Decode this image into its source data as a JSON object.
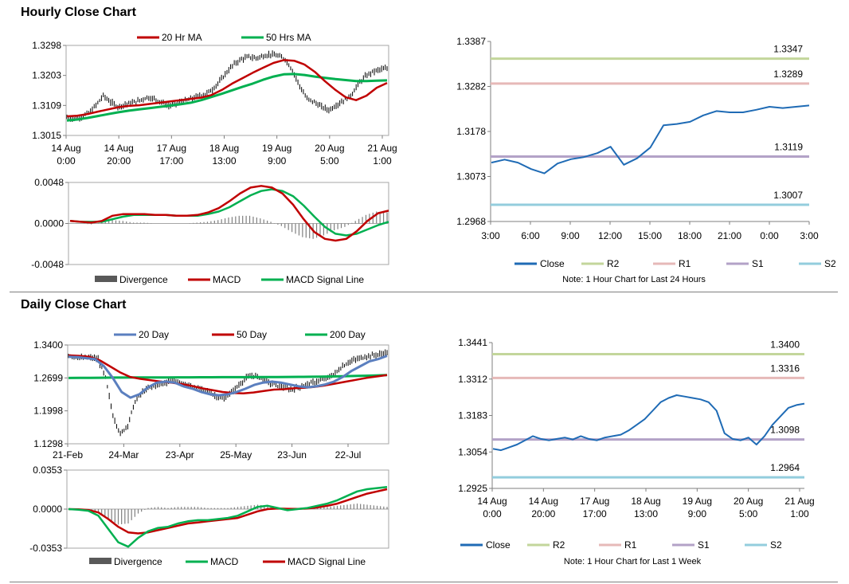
{
  "sections": {
    "hourly_title": "Hourly Close Chart",
    "daily_title": "Daily Close Chart"
  },
  "colors": {
    "red": "#c00000",
    "green": "#00b050",
    "blue": "#1f6bb5",
    "steel": "#5b7fbf",
    "r2": "#c3d69b",
    "r1": "#e6b9b8",
    "s1": "#b3a2c7",
    "s2": "#93cddd",
    "gray": "#7f7f7f",
    "black": "#000000"
  },
  "chart_data": [
    {
      "id": "hourly_price",
      "type": "line",
      "legend": [
        "20 Hr MA",
        "50 Hrs MA"
      ],
      "y_ticks": [
        "1.3298",
        "1.3203",
        "1.3109",
        "1.3015"
      ],
      "ylim": [
        1.3015,
        1.3298
      ],
      "x_ticks": [
        [
          "14 Aug",
          "0:00"
        ],
        [
          "14 Aug",
          "20:00"
        ],
        [
          "17 Aug",
          "17:00"
        ],
        [
          "18 Aug",
          "13:00"
        ],
        [
          "19 Aug",
          "9:00"
        ],
        [
          "20 Aug",
          "5:00"
        ],
        [
          "21 Aug",
          "1:00"
        ]
      ],
      "close_mid": [
        1.3072,
        1.3067,
        1.3075,
        1.3085,
        1.311,
        1.314,
        1.312,
        1.3105,
        1.3112,
        1.3118,
        1.3125,
        1.3135,
        1.313,
        1.312,
        1.3108,
        1.3115,
        1.3122,
        1.313,
        1.3138,
        1.3145,
        1.316,
        1.3185,
        1.3215,
        1.324,
        1.3255,
        1.3262,
        1.3258,
        1.3265,
        1.327,
        1.3265,
        1.3255,
        1.322,
        1.317,
        1.313,
        1.312,
        1.3105,
        1.3095,
        1.311,
        1.3125,
        1.314,
        1.3175,
        1.32,
        1.3215,
        1.3222,
        1.3225
      ],
      "series": [
        {
          "name": "20 Hr MA",
          "values": [
            1.3075,
            1.3077,
            1.3082,
            1.309,
            1.3097,
            1.3104,
            1.3108,
            1.311,
            1.3114,
            1.3118,
            1.3122,
            1.3126,
            1.313,
            1.3134,
            1.3142,
            1.3158,
            1.3178,
            1.3195,
            1.3212,
            1.3228,
            1.3243,
            1.3252,
            1.325,
            1.3238,
            1.3215,
            1.3185,
            1.3158,
            1.3135,
            1.3126,
            1.314,
            1.3165,
            1.318
          ]
        },
        {
          "name": "50 Hrs MA",
          "values": [
            1.3062,
            1.3065,
            1.307,
            1.3076,
            1.3082,
            1.3088,
            1.3093,
            1.3097,
            1.3101,
            1.3105,
            1.3109,
            1.3113,
            1.3118,
            1.3126,
            1.3136,
            1.3146,
            1.3157,
            1.3168,
            1.3178,
            1.319,
            1.32,
            1.3207,
            1.3208,
            1.3205,
            1.32,
            1.3196,
            1.3192,
            1.3189,
            1.3186,
            1.3186,
            1.3187,
            1.3188
          ]
        }
      ]
    },
    {
      "id": "hourly_macd",
      "type": "line",
      "legend": [
        "Divergence",
        "MACD",
        "MACD Signal Line"
      ],
      "y_ticks": [
        "0.0048",
        "0.0000",
        "-0.0048"
      ],
      "ylim": [
        -0.0048,
        0.0048
      ],
      "series": [
        {
          "name": "MACD",
          "values": [
            0.0003,
            0.0002,
            0.0001,
            0.0003,
            0.0009,
            0.0011,
            0.0011,
            0.0011,
            0.001,
            0.001,
            0.0009,
            0.0009,
            0.001,
            0.0013,
            0.0018,
            0.0026,
            0.0035,
            0.0042,
            0.0044,
            0.0042,
            0.0035,
            0.0022,
            0.0005,
            -0.001,
            -0.0018,
            -0.002,
            -0.0018,
            -0.0009,
            0.0003,
            0.0012,
            0.0015
          ]
        },
        {
          "name": "MACD Signal Line",
          "values": [
            0.0003,
            0.0002,
            0.0002,
            0.0002,
            0.0005,
            0.0008,
            0.001,
            0.001,
            0.001,
            0.001,
            0.0009,
            0.0009,
            0.0009,
            0.0011,
            0.0014,
            0.0019,
            0.0026,
            0.0033,
            0.0038,
            0.004,
            0.0038,
            0.0032,
            0.0021,
            0.0008,
            -0.0004,
            -0.0012,
            -0.0014,
            -0.0012,
            -0.0007,
            -0.0002,
            0.0002
          ]
        },
        {
          "name": "Divergence",
          "values": [
            0.0,
            0.0,
            -0.0001,
            0.0001,
            0.0004,
            0.0003,
            0.0001,
            0.0001,
            0.0,
            0.0,
            0.0,
            0.0,
            0.0001,
            0.0002,
            0.0004,
            0.0007,
            0.0009,
            0.0009,
            0.0006,
            0.0002,
            -0.0003,
            -0.001,
            -0.0016,
            -0.0018,
            -0.0014,
            -0.0008,
            -0.0004,
            0.0003,
            0.001,
            0.0014,
            0.0013
          ]
        }
      ]
    },
    {
      "id": "hourly_pivot",
      "type": "line",
      "y_ticks": [
        "1.3387",
        "1.3282",
        "1.3178",
        "1.3073",
        "1.2968"
      ],
      "ylim": [
        1.2968,
        1.3387
      ],
      "x_ticks": [
        "3:00",
        "6:00",
        "9:00",
        "12:00",
        "15:00",
        "18:00",
        "21:00",
        "0:00",
        "3:00"
      ],
      "close": [
        1.3105,
        1.3112,
        1.3105,
        1.309,
        1.308,
        1.3103,
        1.3113,
        1.3118,
        1.3127,
        1.3142,
        1.31,
        1.3115,
        1.314,
        1.3192,
        1.3195,
        1.32,
        1.3215,
        1.3225,
        1.3222,
        1.3222,
        1.3228,
        1.3235,
        1.3232,
        1.3235,
        1.3238
      ],
      "levels": [
        {
          "name": "R2",
          "value": 1.3347,
          "label": "1.3347"
        },
        {
          "name": "R1",
          "value": 1.3289,
          "label": "1.3289"
        },
        {
          "name": "S1",
          "value": 1.3119,
          "label": "1.3119"
        },
        {
          "name": "S2",
          "value": 1.3007,
          "label": "1.3007"
        }
      ],
      "legend": [
        "Close",
        "R2",
        "R1",
        "S1",
        "S2"
      ],
      "note": "Note: 1 Hour Chart for Last 24 Hours"
    },
    {
      "id": "daily_price",
      "type": "line",
      "legend": [
        "20 Day",
        "50 Day",
        "200 Day"
      ],
      "y_ticks": [
        "1.3400",
        "1.2699",
        "1.1998",
        "1.1298"
      ],
      "ylim": [
        1.1298,
        1.34
      ],
      "x_ticks": [
        "21-Feb",
        "24-Mar",
        "23-Apr",
        "25-May",
        "23-Jun",
        "22-Jul"
      ],
      "close_mid": [
        1.318,
        1.315,
        1.312,
        1.313,
        1.31,
        1.27,
        1.19,
        1.15,
        1.17,
        1.22,
        1.24,
        1.25,
        1.255,
        1.26,
        1.265,
        1.26,
        1.255,
        1.25,
        1.245,
        1.24,
        1.23,
        1.225,
        1.24,
        1.255,
        1.27,
        1.275,
        1.27,
        1.26,
        1.255,
        1.25,
        1.245,
        1.25,
        1.255,
        1.26,
        1.265,
        1.27,
        1.28,
        1.295,
        1.305,
        1.31,
        1.315,
        1.318,
        1.32,
        1.325
      ],
      "series": [
        {
          "name": "20 Day",
          "values": [
            1.315,
            1.314,
            1.312,
            1.31,
            1.295,
            1.27,
            1.24,
            1.228,
            1.235,
            1.25,
            1.26,
            1.262,
            1.26,
            1.252,
            1.247,
            1.24,
            1.235,
            1.233,
            1.235,
            1.24,
            1.247,
            1.255,
            1.26,
            1.262,
            1.26,
            1.256,
            1.252,
            1.25,
            1.252,
            1.256,
            1.262,
            1.272,
            1.285,
            1.295,
            1.305,
            1.31,
            1.317
          ]
        },
        {
          "name": "50 Day",
          "values": [
            1.318,
            1.317,
            1.315,
            1.308,
            1.295,
            1.282,
            1.272,
            1.268,
            1.265,
            1.262,
            1.26,
            1.257,
            1.253,
            1.248,
            1.244,
            1.24,
            1.238,
            1.237,
            1.239,
            1.242,
            1.245,
            1.246,
            1.248,
            1.249,
            1.251,
            1.254,
            1.258,
            1.262,
            1.266,
            1.27,
            1.273,
            1.276
          ]
        },
        {
          "name": "200 Day",
          "values": [
            1.2699,
            1.27,
            1.2702,
            1.2704,
            1.2706,
            1.2707,
            1.2708,
            1.2708,
            1.2709,
            1.271,
            1.2711,
            1.2712,
            1.2713,
            1.2714,
            1.2715,
            1.2716,
            1.2716,
            1.2717,
            1.2718,
            1.2719,
            1.272,
            1.2722,
            1.2724,
            1.2727,
            1.273,
            1.2735,
            1.274,
            1.2745,
            1.2752,
            1.276
          ]
        }
      ]
    },
    {
      "id": "daily_macd",
      "type": "line",
      "legend": [
        "Divergence",
        "MACD",
        "MACD Signal Line"
      ],
      "y_ticks": [
        "0.0353",
        "0.0000",
        "-0.0353"
      ],
      "ylim": [
        -0.0353,
        0.0353
      ],
      "series": [
        {
          "name": "MACD",
          "values": [
            0.0,
            -0.0005,
            -0.0015,
            -0.006,
            -0.018,
            -0.03,
            -0.034,
            -0.026,
            -0.02,
            -0.017,
            -0.016,
            -0.013,
            -0.011,
            -0.01,
            -0.01,
            -0.009,
            -0.008,
            -0.006,
            -0.002,
            0.002,
            0.003,
            0.001,
            -0.001,
            0.0,
            0.001,
            0.003,
            0.005,
            0.008,
            0.012,
            0.016,
            0.018,
            0.019,
            0.02
          ]
        },
        {
          "name": "MACD Signal Line",
          "values": [
            0.0,
            -0.0002,
            -0.0008,
            -0.003,
            -0.009,
            -0.016,
            -0.021,
            -0.022,
            -0.021,
            -0.019,
            -0.017,
            -0.015,
            -0.013,
            -0.012,
            -0.011,
            -0.01,
            -0.009,
            -0.008,
            -0.005,
            -0.002,
            0.0,
            0.0005,
            0.0003,
            0.0002,
            0.0005,
            0.0015,
            0.003,
            0.005,
            0.008,
            0.011,
            0.014,
            0.016,
            0.018
          ]
        },
        {
          "name": "Divergence",
          "values": [
            0.0,
            -0.0003,
            -0.0007,
            -0.003,
            -0.009,
            -0.014,
            -0.013,
            -0.004,
            0.001,
            0.002,
            0.001,
            0.002,
            0.002,
            0.002,
            0.001,
            0.001,
            0.001,
            0.002,
            0.003,
            0.004,
            0.003,
            0.0005,
            -0.0013,
            -0.0002,
            0.0005,
            0.0015,
            0.002,
            0.003,
            0.004,
            0.005,
            0.004,
            0.003,
            0.002
          ]
        }
      ]
    },
    {
      "id": "weekly_pivot",
      "type": "line",
      "y_ticks": [
        "1.3441",
        "1.3312",
        "1.3183",
        "1.3054",
        "1.2925"
      ],
      "ylim": [
        1.2925,
        1.3441
      ],
      "x_ticks": [
        [
          "14 Aug",
          "0:00"
        ],
        [
          "14 Aug",
          "20:00"
        ],
        [
          "17 Aug",
          "17:00"
        ],
        [
          "18 Aug",
          "13:00"
        ],
        [
          "19 Aug",
          "9:00"
        ],
        [
          "20 Aug",
          "5:00"
        ],
        [
          "21 Aug",
          "1:00"
        ]
      ],
      "close": [
        1.3065,
        1.306,
        1.307,
        1.308,
        1.3095,
        1.311,
        1.31,
        1.3095,
        1.31,
        1.3105,
        1.3098,
        1.311,
        1.31,
        1.3095,
        1.3105,
        1.311,
        1.3115,
        1.313,
        1.315,
        1.317,
        1.32,
        1.323,
        1.3245,
        1.3255,
        1.325,
        1.3245,
        1.324,
        1.323,
        1.32,
        1.312,
        1.31,
        1.3095,
        1.3105,
        1.308,
        1.311,
        1.315,
        1.318,
        1.321,
        1.322,
        1.3225
      ],
      "levels": [
        {
          "name": "R2",
          "value": 1.34,
          "label": "1.3400"
        },
        {
          "name": "R1",
          "value": 1.3316,
          "label": "1.3316"
        },
        {
          "name": "S1",
          "value": 1.3098,
          "label": "1.3098"
        },
        {
          "name": "S2",
          "value": 1.2964,
          "label": "1.2964"
        }
      ],
      "legend": [
        "Close",
        "R2",
        "R1",
        "S1",
        "S2"
      ],
      "note": "Note: 1 Hour Chart for Last 1 Week"
    }
  ]
}
